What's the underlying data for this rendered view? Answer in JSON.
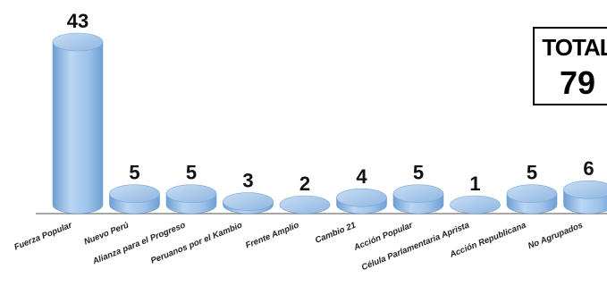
{
  "chart_data": {
    "type": "bar",
    "categories": [
      "Fuerza Popular",
      "Nuevo Perú",
      "Alianza para el Progreso",
      "Peruanos por el Kambio",
      "Frente Amplio",
      "Cambio 21",
      "Acción Popular",
      "Célula Parlamentaria Aprista",
      "Acción Republicana",
      "No Agrupados"
    ],
    "values": [
      43,
      5,
      5,
      3,
      2,
      4,
      5,
      1,
      5,
      6
    ],
    "ylim": [
      0,
      43
    ],
    "colors": {
      "bar": "#9ec3ea",
      "bar_dark": "#6f9fd2",
      "axis": "#8c8c8c"
    }
  },
  "total": {
    "label": "TOTAL",
    "value": "79"
  }
}
